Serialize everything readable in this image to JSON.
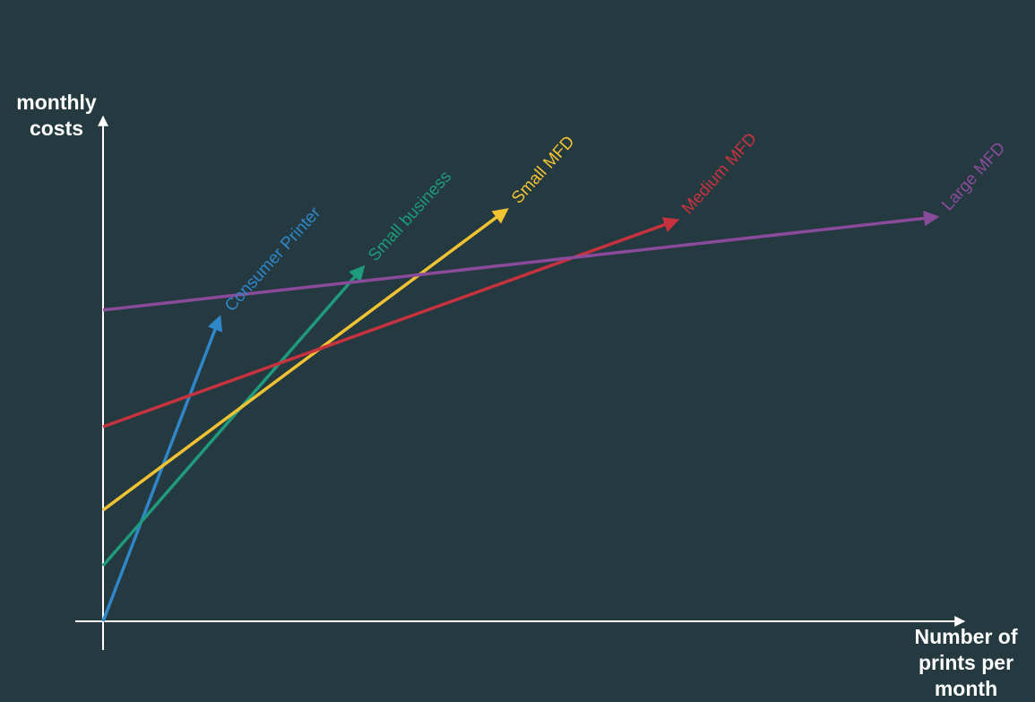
{
  "axes": {
    "y_label": "monthly\ncosts",
    "x_label": "Number of\nprints per\nmonth"
  },
  "colors": {
    "background": "#253a40",
    "axis": "#ffffff"
  },
  "series": [
    {
      "name": "Consumer Printer",
      "color": "#2f86c8",
      "intercept": 0,
      "slope": 4.2
    },
    {
      "name": "Small business",
      "color": "#1e9a7c",
      "intercept": 10,
      "slope": 1.85
    },
    {
      "name": "Small MFD",
      "color": "#f1c232",
      "intercept": 20,
      "slope": 1.2
    },
    {
      "name": "Medium MFD",
      "color": "#c8323f",
      "intercept": 35,
      "slope": 0.58
    },
    {
      "name": "Large MFD",
      "color": "#8a4b9a",
      "intercept": 56,
      "slope": 0.18
    }
  ]
}
